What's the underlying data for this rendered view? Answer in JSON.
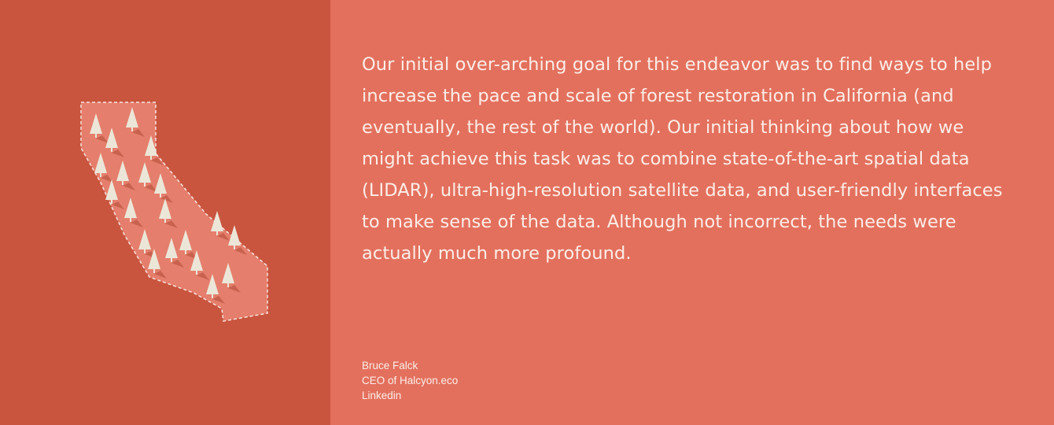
{
  "illustration": {
    "icon": "california-map-icon",
    "tree_icon": "pine-tree-icon",
    "colors": {
      "panel_bg": "#c9553f",
      "state_fill": "#e57e6c",
      "outline": "#f6e6df",
      "tree": "#ece6d8",
      "tree_shadow": "#b04a37"
    }
  },
  "quote": {
    "text": "Our initial over-arching goal for this endeavor was to find ways to help increase the pace and scale of forest restoration in California (and eventually, the rest of the world). Our initial thinking about how we might achieve this task was to combine state-of-the-art spatial data (LIDAR), ultra-high-resolution satellite data, and user-friendly interfaces to make sense of the data. Although not incorrect, the needs were actually much more profound."
  },
  "author": {
    "name": "Bruce Falck",
    "title": "CEO of Halcyon.eco",
    "link_label": "Linkedin"
  },
  "colors": {
    "right_bg": "#e3705d",
    "text": "#fbeee8"
  }
}
